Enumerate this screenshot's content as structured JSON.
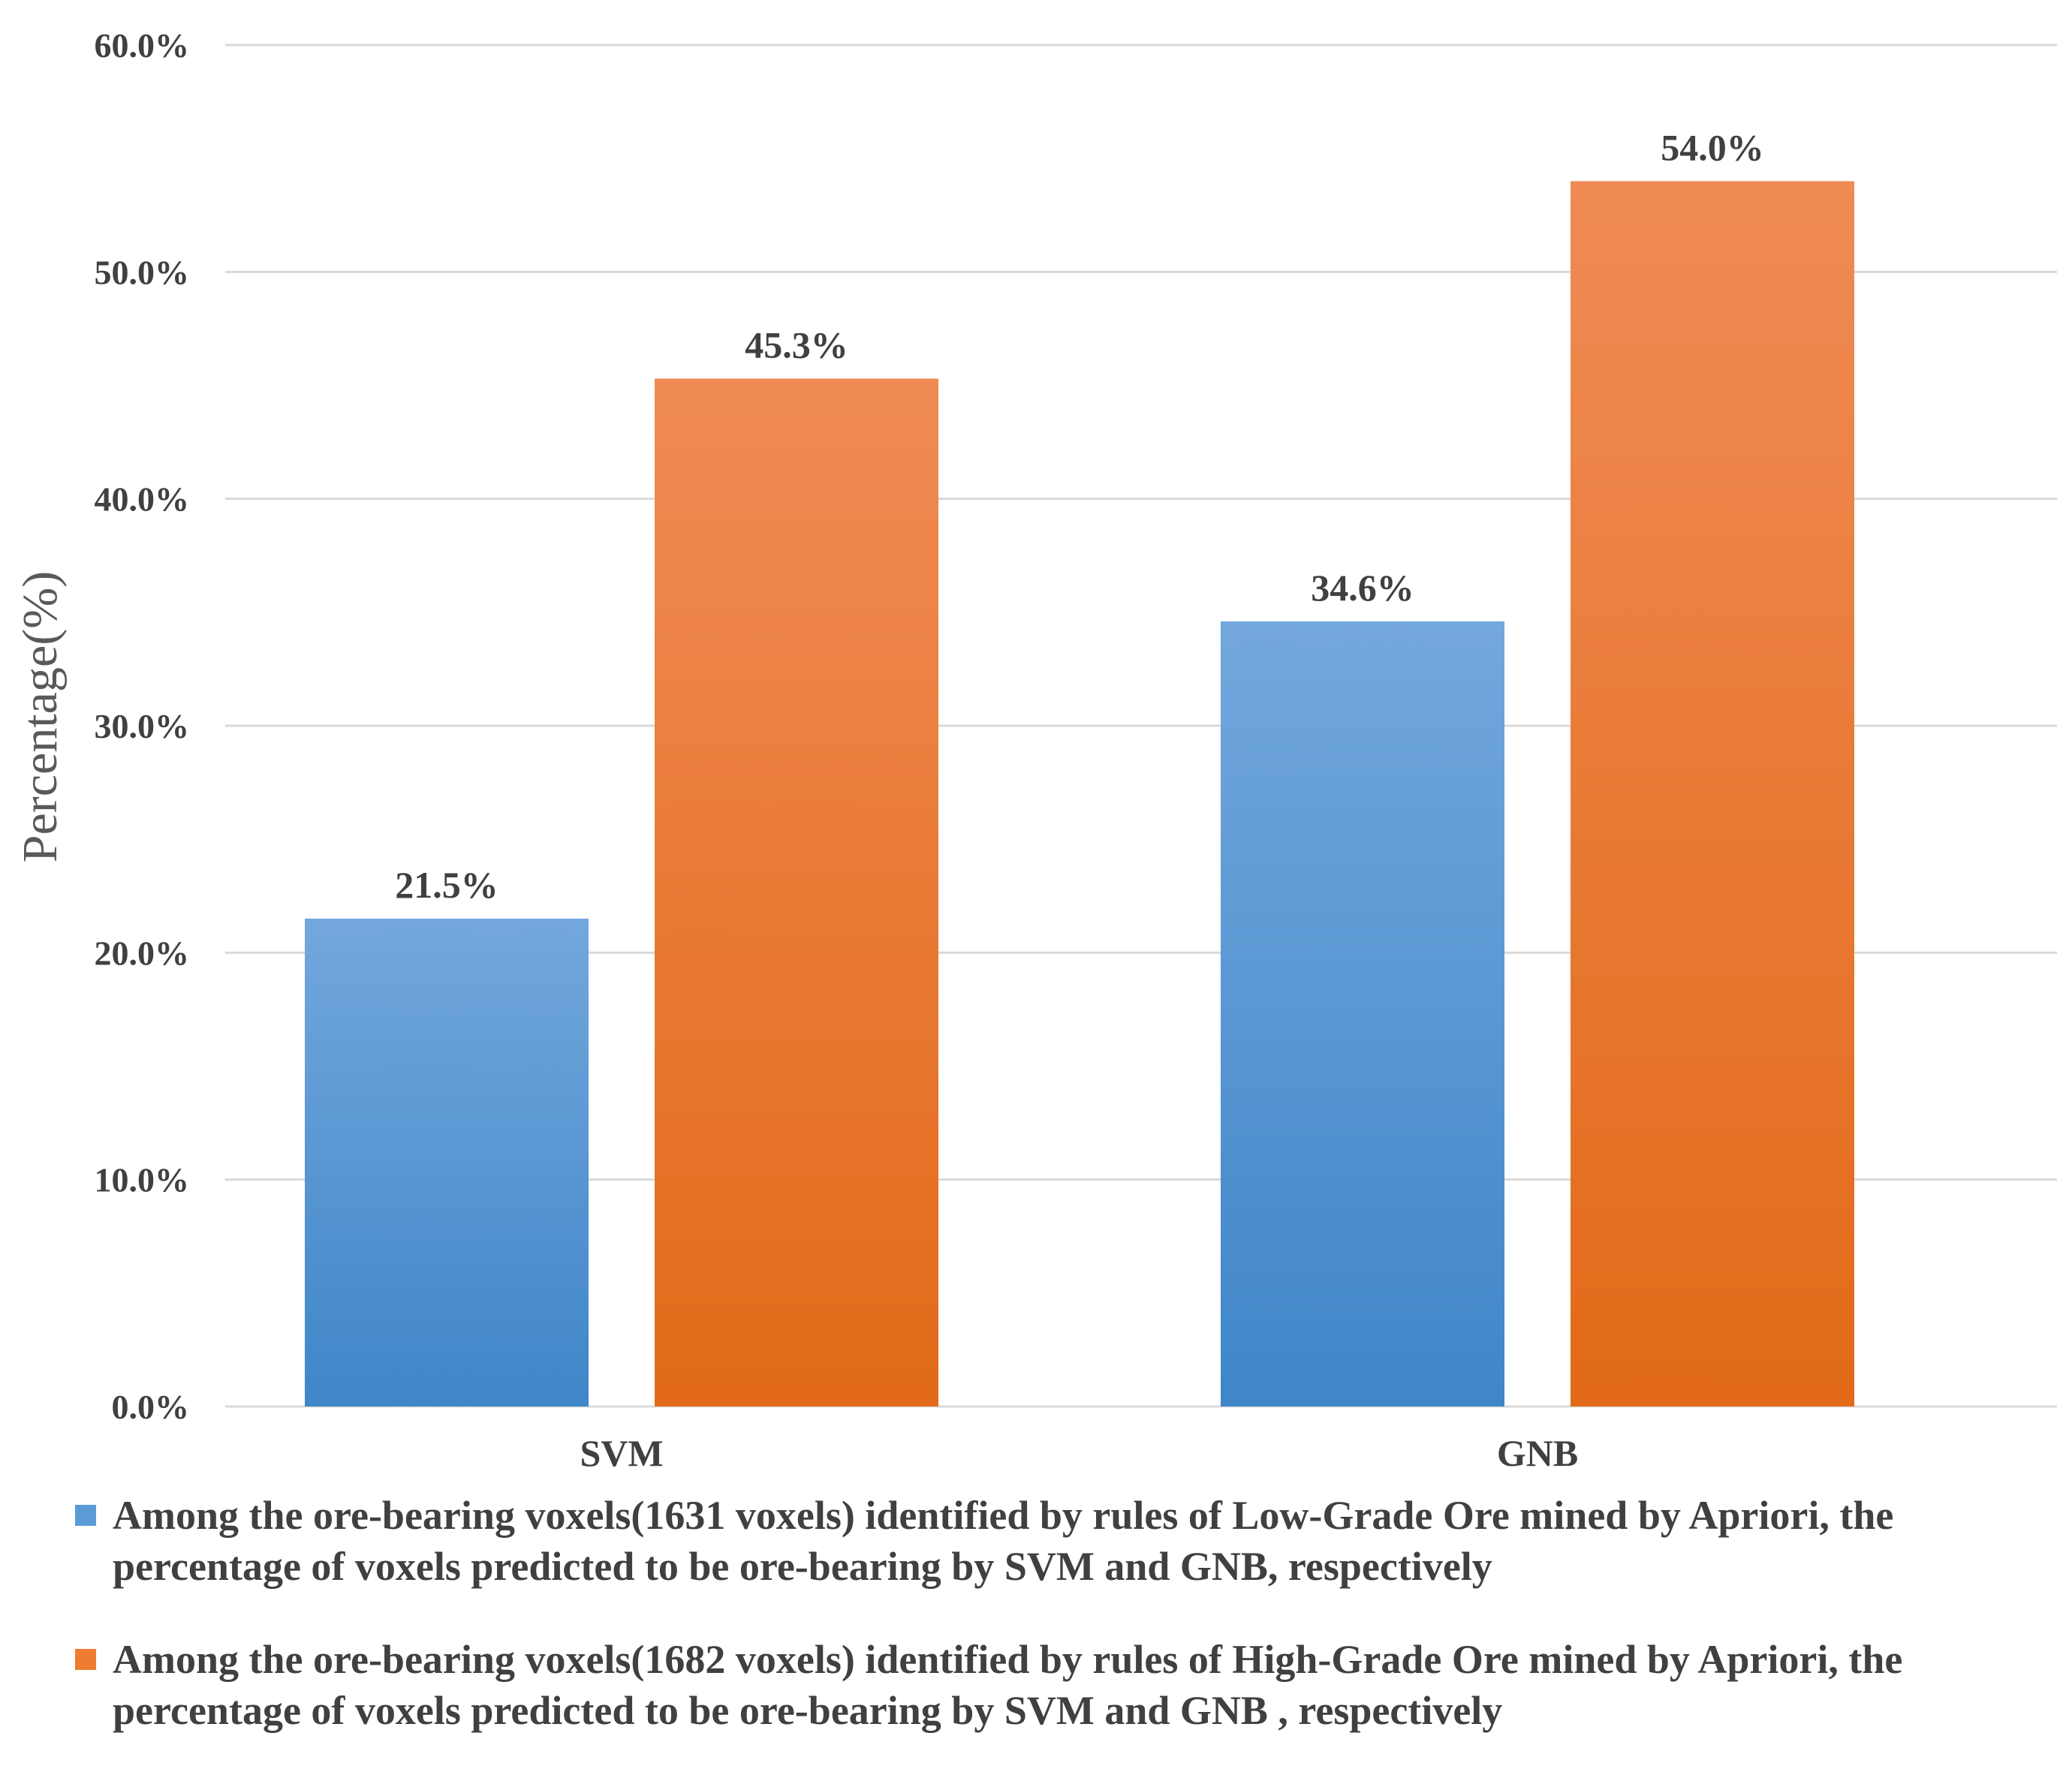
{
  "chart_data": {
    "type": "bar",
    "categories": [
      "SVM",
      "GNB"
    ],
    "series": [
      {
        "name": "Among the ore-bearing voxels(1631 voxels) identified by rules of Low-Grade Ore mined by Apriori, the percentage of voxels predicted to be ore-bearing by SVM and GNB, respectively",
        "values": [
          21.5,
          34.6
        ],
        "labels": [
          "21.5%",
          "34.6%"
        ],
        "color_top": "#73a7dd",
        "color_bottom": "#3f86c8",
        "swatch_color": "#5b9bd5"
      },
      {
        "name": "Among the ore-bearing voxels(1682 voxels) identified by rules of High-Grade Ore mined by Apriori, the percentage of voxels predicted to be ore-bearing by SVM and GNB , respectively",
        "values": [
          45.3,
          54.0
        ],
        "labels": [
          "45.3%",
          "54.0%"
        ],
        "color_top": "#f08b55",
        "color_bottom": "#e26a18",
        "swatch_color": "#ed7d31"
      }
    ],
    "ylabel": "Percentage(%)",
    "xlabel": "",
    "ylim": [
      0,
      60
    ],
    "yticks": [
      0,
      10,
      20,
      30,
      40,
      50,
      60
    ],
    "ytick_labels": [
      "0.0%",
      "10.0%",
      "20.0%",
      "30.0%",
      "40.0%",
      "50.0%",
      "60.0%"
    ],
    "grid": true,
    "legend_position": "bottom"
  },
  "legend": {
    "items": [
      {
        "line1": "Among the ore-bearing voxels(1631 voxels) identified by rules of Low-Grade Ore mined by Apriori, the",
        "line2": "percentage of voxels predicted to be ore-bearing by SVM and GNB, respectively"
      },
      {
        "line1": "Among the ore-bearing voxels(1682 voxels) identified by rules of High-Grade Ore mined by Apriori, the",
        "line2": "percentage of voxels predicted to be ore-bearing by SVM and GNB , respectively"
      }
    ]
  },
  "colors": {
    "gridline": "#d9d9d9",
    "text": "#404040",
    "axis_title": "#595959"
  }
}
